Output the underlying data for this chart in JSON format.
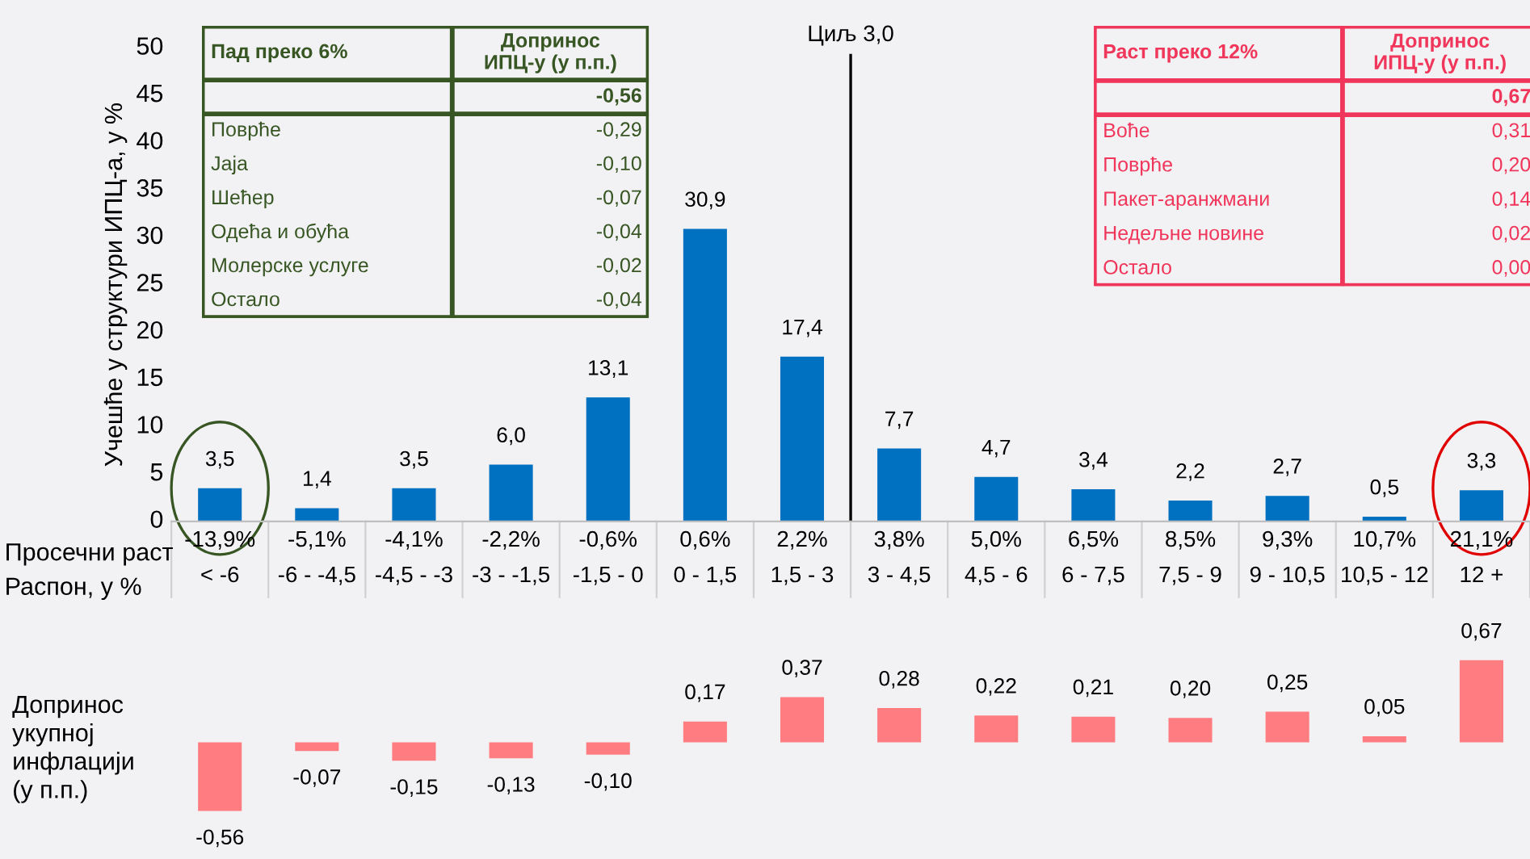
{
  "chart_data": [
    {
      "type": "bar",
      "ylabel": "Учешће у структури ИПЦ-а, у %",
      "categories": [
        "-13,9%\n< -6",
        "-5,1%\n-6 - -4,5",
        "-4,1%\n-4,5 - -3",
        "-2,2%\n-3 - -1,5",
        "-0,6%\n-1,5 - 0",
        "0,6%\n0 - 1,5",
        "2,2%\n1,5 - 3",
        "3,8%\n3 - 4,5",
        "5,0%\n4,5 - 6",
        "6,5%\n6 - 7,5",
        "8,5%\n7,5 - 9",
        "9,3%\n9 - 10,5",
        "10,7%\n10,5 - 12",
        "21,1%\n12 +"
      ],
      "values": [
        3.5,
        1.4,
        3.5,
        6.0,
        13.1,
        30.9,
        17.4,
        7.7,
        4.7,
        3.4,
        2.2,
        2.7,
        0.5,
        3.3
      ],
      "value_labels": [
        "3,5",
        "1,4",
        "3,5",
        "6,0",
        "13,1",
        "30,9",
        "17,4",
        "7,7",
        "4,7",
        "3,4",
        "2,2",
        "2,7",
        "0,5",
        "3,3"
      ],
      "color": "#0070c0",
      "ylim": [
        0,
        50
      ],
      "yticks": [
        0,
        5,
        10,
        15,
        20,
        25,
        30,
        35,
        40,
        45,
        50
      ],
      "annotations": [
        "Просечни раст",
        "Распон, у %",
        "Циљ 3,0"
      ]
    },
    {
      "type": "other",
      "title": "Пад преко 6%",
      "subtitle": "Допринос\nИПЦ-у (у п.п.)",
      "color": "#375623",
      "totals": [
        "-0,56"
      ],
      "categories": [
        "Поврће",
        "Јаја",
        "Шећер",
        "Одећа и обућа",
        "Молерске услуге",
        "Остало"
      ],
      "value_labels": [
        "-0,29",
        "-0,10",
        "-0,07",
        "-0,04",
        "-0,02",
        "-0,04"
      ]
    },
    {
      "type": "other",
      "title": "Раст преко 12%",
      "subtitle": "Допринос\nИПЦ-у (у п.п.)",
      "color": "#f0365a",
      "totals": [
        "0,67"
      ],
      "categories": [
        "Воће",
        "Поврће",
        "Пакет-аранжмани",
        "Недељне новине",
        "Остало"
      ],
      "value_labels": [
        "0,31",
        "0,20",
        "0,14",
        "0,02",
        "0,00"
      ]
    },
    {
      "type": "bar",
      "ylabel": "Допринос\nукупној\nинфлацији\n(у п.п.)",
      "categories": [
        null,
        null,
        null,
        null,
        null,
        null,
        null,
        null,
        null,
        null,
        null,
        null,
        null,
        null
      ],
      "values": [
        -0.56,
        -0.07,
        -0.15,
        -0.13,
        -0.1,
        0.17,
        0.37,
        0.28,
        0.22,
        0.21,
        0.2,
        0.25,
        0.05,
        0.67
      ],
      "value_labels": [
        "-0,56",
        "-0,07",
        "-0,15",
        "-0,13",
        "-0,10",
        "0,17",
        "0,37",
        "0,28",
        "0,22",
        "0,21",
        "0,20",
        "0,25",
        "0,05",
        "0,67"
      ],
      "color": "#ff7c80",
      "tick_labels": false
    }
  ]
}
